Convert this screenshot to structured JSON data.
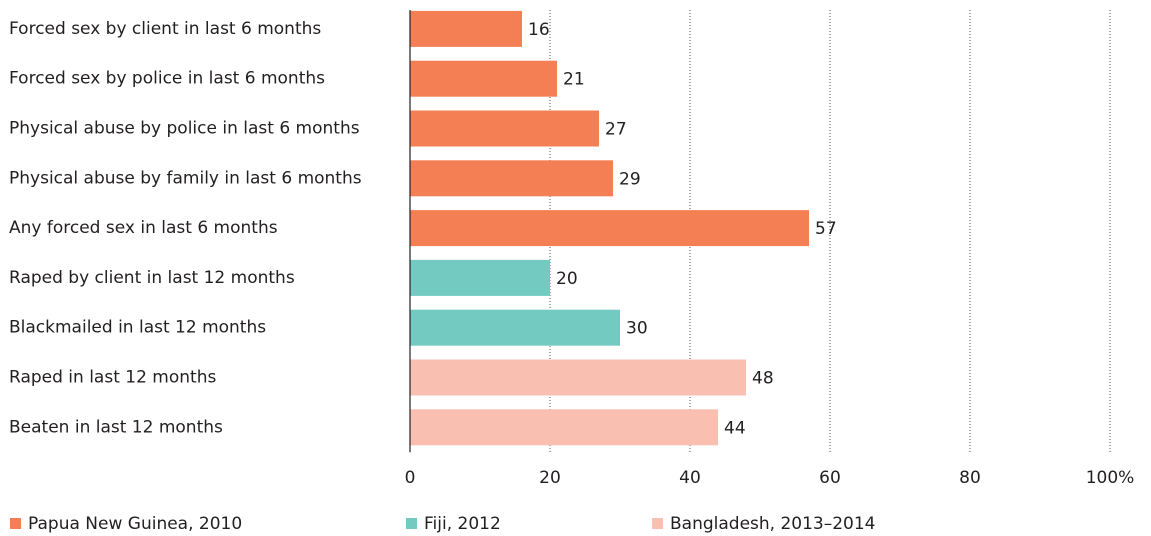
{
  "chart_data": {
    "type": "bar",
    "orientation": "horizontal",
    "categories": [
      "Forced sex by client in last 6 months",
      "Forced sex by police in last 6 months",
      "Physical abuse by police in last 6 months",
      "Physical abuse by family in last 6 months",
      "Any forced sex in last 6 months",
      "Raped by client in last 12 months",
      "Blackmailed in last 12 months",
      "Raped in last 12 months",
      "Beaten in last 12 months"
    ],
    "series": [
      {
        "name": "Papua New Guinea, 2010",
        "color": "#f47f55",
        "values": [
          16,
          21,
          27,
          29,
          57,
          null,
          null,
          null,
          null
        ]
      },
      {
        "name": "Fiji, 2012",
        "color": "#72cac0",
        "values": [
          null,
          null,
          null,
          null,
          null,
          20,
          30,
          null,
          null
        ]
      },
      {
        "name": "Bangladesh, 2013–2014",
        "color": "#f9bfb1",
        "values": [
          null,
          null,
          null,
          null,
          null,
          null,
          null,
          48,
          44
        ]
      }
    ],
    "xlim": [
      0,
      100
    ],
    "xticks": [
      0,
      20,
      40,
      60,
      80,
      {
        "value": 100,
        "label": "100%"
      }
    ],
    "grid": true,
    "legend": "bottom"
  }
}
